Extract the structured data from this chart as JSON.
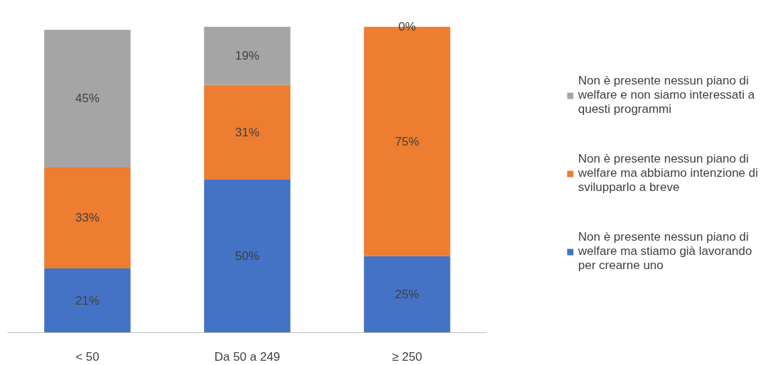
{
  "chart_data": {
    "type": "bar",
    "stacked": true,
    "data_labels": true,
    "legend": "right",
    "grid": false,
    "categories": [
      "< 50",
      "Da 50 a 249",
      "≥ 250"
    ],
    "series": [
      {
        "name": "Non è presente nessun piano di welfare ma stiamo già lavorando per crearne uno",
        "color": "#4472c4",
        "values": [
          21,
          50,
          25
        ],
        "value_labels": [
          "21%",
          "50%",
          "25%"
        ]
      },
      {
        "name": "Non è presente nessun piano di welfare ma abbiamo intenzione di svilupparlo a breve",
        "color": "#ed7d31",
        "values": [
          33,
          31,
          75
        ],
        "value_labels": [
          "33%",
          "31%",
          "75%"
        ]
      },
      {
        "name": "Non è presente nessun piano di welfare e non siamo interessati a questi programmi",
        "color": "#a5a5a5",
        "values": [
          45,
          19,
          0
        ],
        "value_labels": [
          "45%",
          "19%",
          "0%"
        ]
      }
    ]
  }
}
